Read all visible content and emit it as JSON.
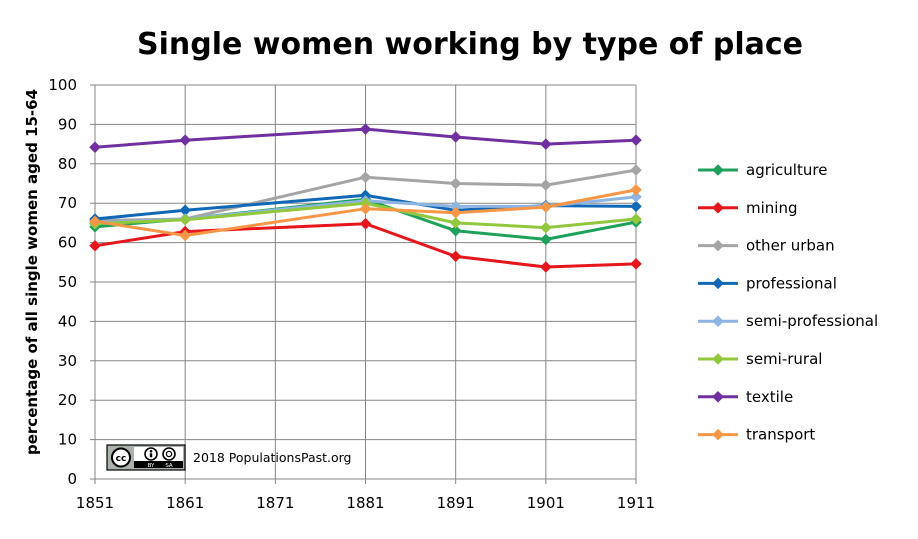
{
  "chart_data": {
    "type": "line",
    "title": "Single women working by type of place",
    "ylabel": "percentage of all single women aged 15-64",
    "xlabel": "",
    "x": [
      1851,
      1861,
      1871,
      1881,
      1891,
      1901,
      1911
    ],
    "x_ticks": [
      "1851",
      "1861",
      "1871",
      "1881",
      "1891",
      "1901",
      "1911"
    ],
    "ylim": [
      0,
      100
    ],
    "y_ticks": [
      "0",
      "10",
      "20",
      "30",
      "40",
      "50",
      "60",
      "70",
      "80",
      "90",
      "100"
    ],
    "grid": true,
    "legend_position": "right",
    "series": [
      {
        "name": "agriculture",
        "color": "#1fa15c",
        "points": [
          [
            1851,
            64
          ],
          [
            1861,
            66
          ],
          [
            1881,
            71
          ],
          [
            1891,
            63
          ],
          [
            1901,
            60.8
          ],
          [
            1911,
            65.2
          ]
        ]
      },
      {
        "name": "mining",
        "color": "#e5171c",
        "points": [
          [
            1851,
            59.2
          ],
          [
            1861,
            62.8
          ],
          [
            1881,
            64.8
          ],
          [
            1891,
            56.5
          ],
          [
            1901,
            53.8
          ],
          [
            1911,
            54.6
          ]
        ]
      },
      {
        "name": "other urban",
        "color": "#a5a5a5",
        "points": [
          [
            1851,
            65.6
          ],
          [
            1861,
            66
          ],
          [
            1881,
            76.6
          ],
          [
            1891,
            75
          ],
          [
            1901,
            74.6
          ],
          [
            1911,
            78.4
          ]
        ]
      },
      {
        "name": "professional",
        "color": "#1168b6",
        "points": [
          [
            1851,
            66
          ],
          [
            1861,
            68.2
          ],
          [
            1881,
            72
          ],
          [
            1891,
            68.2
          ],
          [
            1901,
            69.4
          ],
          [
            1911,
            69.2
          ]
        ]
      },
      {
        "name": "semi-professional",
        "color": "#8db4e2",
        "points": [
          [
            1851,
            65
          ],
          [
            1861,
            66
          ],
          [
            1881,
            70.6
          ],
          [
            1891,
            69.2
          ],
          [
            1901,
            69.2
          ],
          [
            1911,
            71.6
          ]
        ]
      },
      {
        "name": "semi-rural",
        "color": "#92c83e",
        "points": [
          [
            1851,
            64.8
          ],
          [
            1861,
            65.8
          ],
          [
            1881,
            70
          ],
          [
            1891,
            65
          ],
          [
            1901,
            63.8
          ],
          [
            1911,
            66
          ]
        ]
      },
      {
        "name": "textile",
        "color": "#7030a0",
        "points": [
          [
            1851,
            84.2
          ],
          [
            1861,
            86
          ],
          [
            1881,
            88.8
          ],
          [
            1891,
            86.8
          ],
          [
            1901,
            85
          ],
          [
            1911,
            86
          ]
        ]
      },
      {
        "name": "transport",
        "color": "#f79646",
        "points": [
          [
            1851,
            65.4
          ],
          [
            1861,
            61.8
          ],
          [
            1881,
            68.6
          ],
          [
            1891,
            67.6
          ],
          [
            1901,
            69
          ],
          [
            1911,
            73.4
          ]
        ]
      }
    ],
    "annotation": {
      "badge_top": "cc",
      "badge_labels": [
        "BY",
        "SA"
      ],
      "text": "2018 PopulationsPast.org"
    }
  }
}
